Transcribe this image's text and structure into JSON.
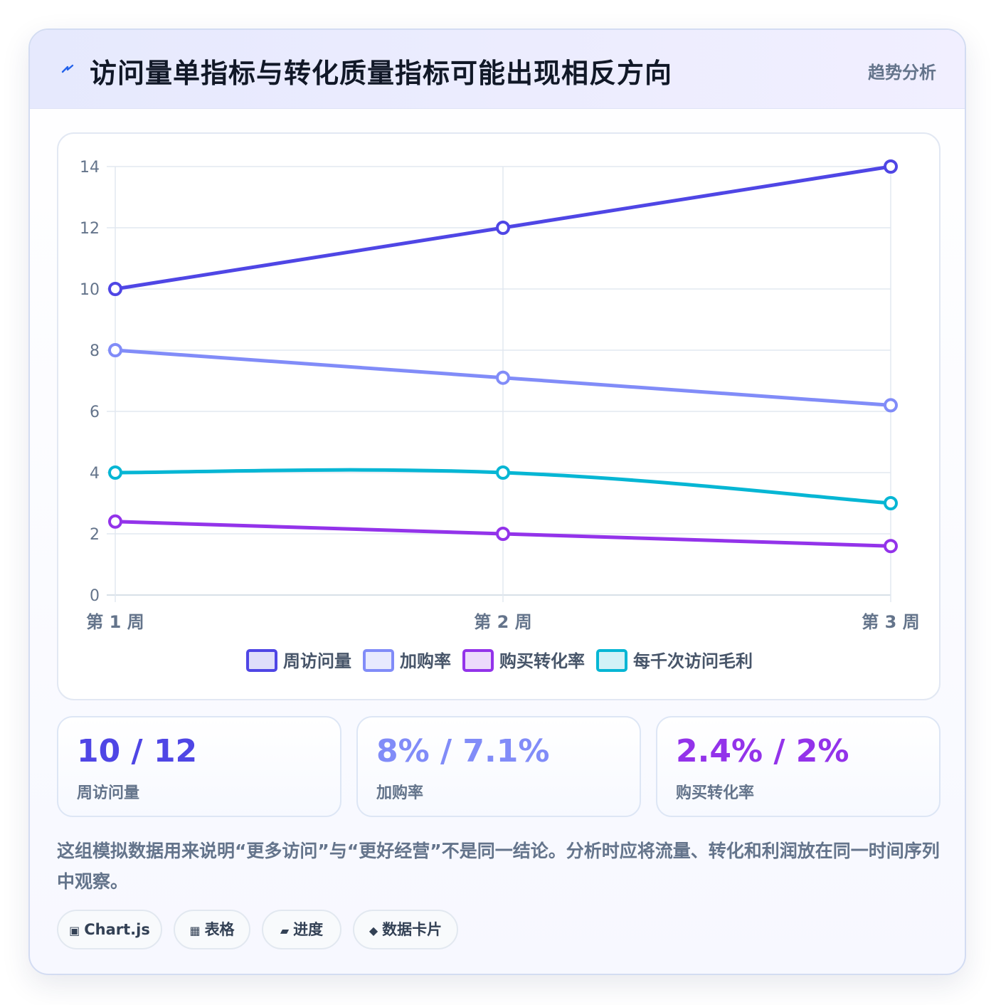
{
  "header": {
    "title": "访问量单指标与转化质量指标可能出现相反方向",
    "tag": "趋势分析",
    "icon": "lightning-icon"
  },
  "chart_data": {
    "type": "line",
    "categories": [
      "第 1 周",
      "第 2 周",
      "第 3 周"
    ],
    "ylim": [
      0,
      14
    ],
    "yticks": [
      0,
      2,
      4,
      6,
      8,
      10,
      12,
      14
    ],
    "grid": true,
    "legend_position": "bottom",
    "series": [
      {
        "name": "周访问量",
        "values": [
          10,
          12,
          14
        ],
        "color": "#4f46e5"
      },
      {
        "name": "加购率",
        "values": [
          8,
          7.1,
          6.2
        ],
        "color": "#818cf8"
      },
      {
        "name": "购买转化率",
        "values": [
          2.4,
          2,
          1.6
        ],
        "color": "#9333ea"
      },
      {
        "name": "每千次访问毛利",
        "values": [
          4,
          4,
          3
        ],
        "color": "#06b6d4"
      }
    ]
  },
  "stats": [
    {
      "value": "10 / 12",
      "label": "周访问量",
      "color": "#4f46e5"
    },
    {
      "value": "8% / 7.1%",
      "label": "加购率",
      "color": "#818cf8"
    },
    {
      "value": "2.4% / 2%",
      "label": "购买转化率",
      "color": "#9333ea"
    }
  ],
  "note": "这组模拟数据用来说明“更多访问”与“更好经营”不是同一结论。分析时应将流量、转化和利润放在同一时间序列中观察。",
  "pills": [
    {
      "icon": "▣",
      "label": "Chart.js"
    },
    {
      "icon": "▦",
      "label": "表格"
    },
    {
      "icon": "▰",
      "label": "进度"
    },
    {
      "icon": "◆",
      "label": "数据卡片"
    }
  ]
}
